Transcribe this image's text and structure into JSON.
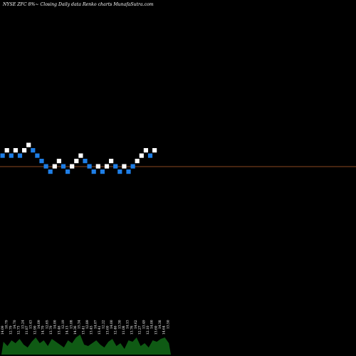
{
  "header": {
    "title": "NYSE ZFC 8%~  Closing Daily data  Renko  charts MunafaSutra.com"
  },
  "colors": {
    "background": "#000000",
    "up_brick": "#ffffff",
    "down_brick": "#1e7ee6",
    "reference_line": "#b8602a",
    "volume": "#0f5a14"
  },
  "chart_data": [
    {
      "type": "renko",
      "title": "NYSE ZFC 8%~  Closing Daily data  Renko  charts MunafaSutra.com",
      "y_units": "brick levels (relative)",
      "reference_line_level": 3.8,
      "bricks": [
        {
          "level": 0,
          "direction": "down"
        },
        {
          "level": 1,
          "direction": "up"
        },
        {
          "level": 0,
          "direction": "down"
        },
        {
          "level": 1,
          "direction": "up"
        },
        {
          "level": 0,
          "direction": "down"
        },
        {
          "level": 1,
          "direction": "up"
        },
        {
          "level": 2,
          "direction": "up"
        },
        {
          "level": 1,
          "direction": "down"
        },
        {
          "level": 0,
          "direction": "down"
        },
        {
          "level": -1,
          "direction": "down"
        },
        {
          "level": -2,
          "direction": "down"
        },
        {
          "level": -3,
          "direction": "down"
        },
        {
          "level": -2,
          "direction": "up"
        },
        {
          "level": -1,
          "direction": "up"
        },
        {
          "level": -2,
          "direction": "down"
        },
        {
          "level": -3,
          "direction": "down"
        },
        {
          "level": -2,
          "direction": "up"
        },
        {
          "level": -1,
          "direction": "up"
        },
        {
          "level": 0,
          "direction": "up"
        },
        {
          "level": -1,
          "direction": "down"
        },
        {
          "level": -2,
          "direction": "down"
        },
        {
          "level": -3,
          "direction": "down"
        },
        {
          "level": -2,
          "direction": "up"
        },
        {
          "level": -3,
          "direction": "down"
        },
        {
          "level": -2,
          "direction": "up"
        },
        {
          "level": -1,
          "direction": "up"
        },
        {
          "level": -2,
          "direction": "down"
        },
        {
          "level": -3,
          "direction": "down"
        },
        {
          "level": -2,
          "direction": "up"
        },
        {
          "level": -3,
          "direction": "down"
        },
        {
          "level": -2,
          "direction": "down"
        },
        {
          "level": -1,
          "direction": "up"
        },
        {
          "level": 0,
          "direction": "up"
        },
        {
          "level": 1,
          "direction": "up"
        },
        {
          "level": 0,
          "direction": "down"
        },
        {
          "level": 1,
          "direction": "up"
        }
      ],
      "volume_labels": [
        "14.09",
        "10.79",
        "12.79",
        "14.70",
        "12.73",
        "13.24",
        "11.87",
        "13.43",
        "12.90",
        "14.09",
        "14.70",
        "12.65",
        "13.79",
        "14.00",
        "13.46",
        "12.19",
        "14.13",
        "13.08",
        "14.36",
        "15.34",
        "13.41",
        "12.89",
        "13.45",
        "14.07",
        "13.41",
        "12.22",
        "13.60",
        "14.00",
        "12.46",
        "13.30",
        "11.08",
        "14.13",
        "13.76",
        "14.62",
        "12.27",
        "13.49",
        "12.10",
        "14.00",
        "13.60",
        "14.38",
        "14.64",
        "13.50"
      ]
    }
  ]
}
